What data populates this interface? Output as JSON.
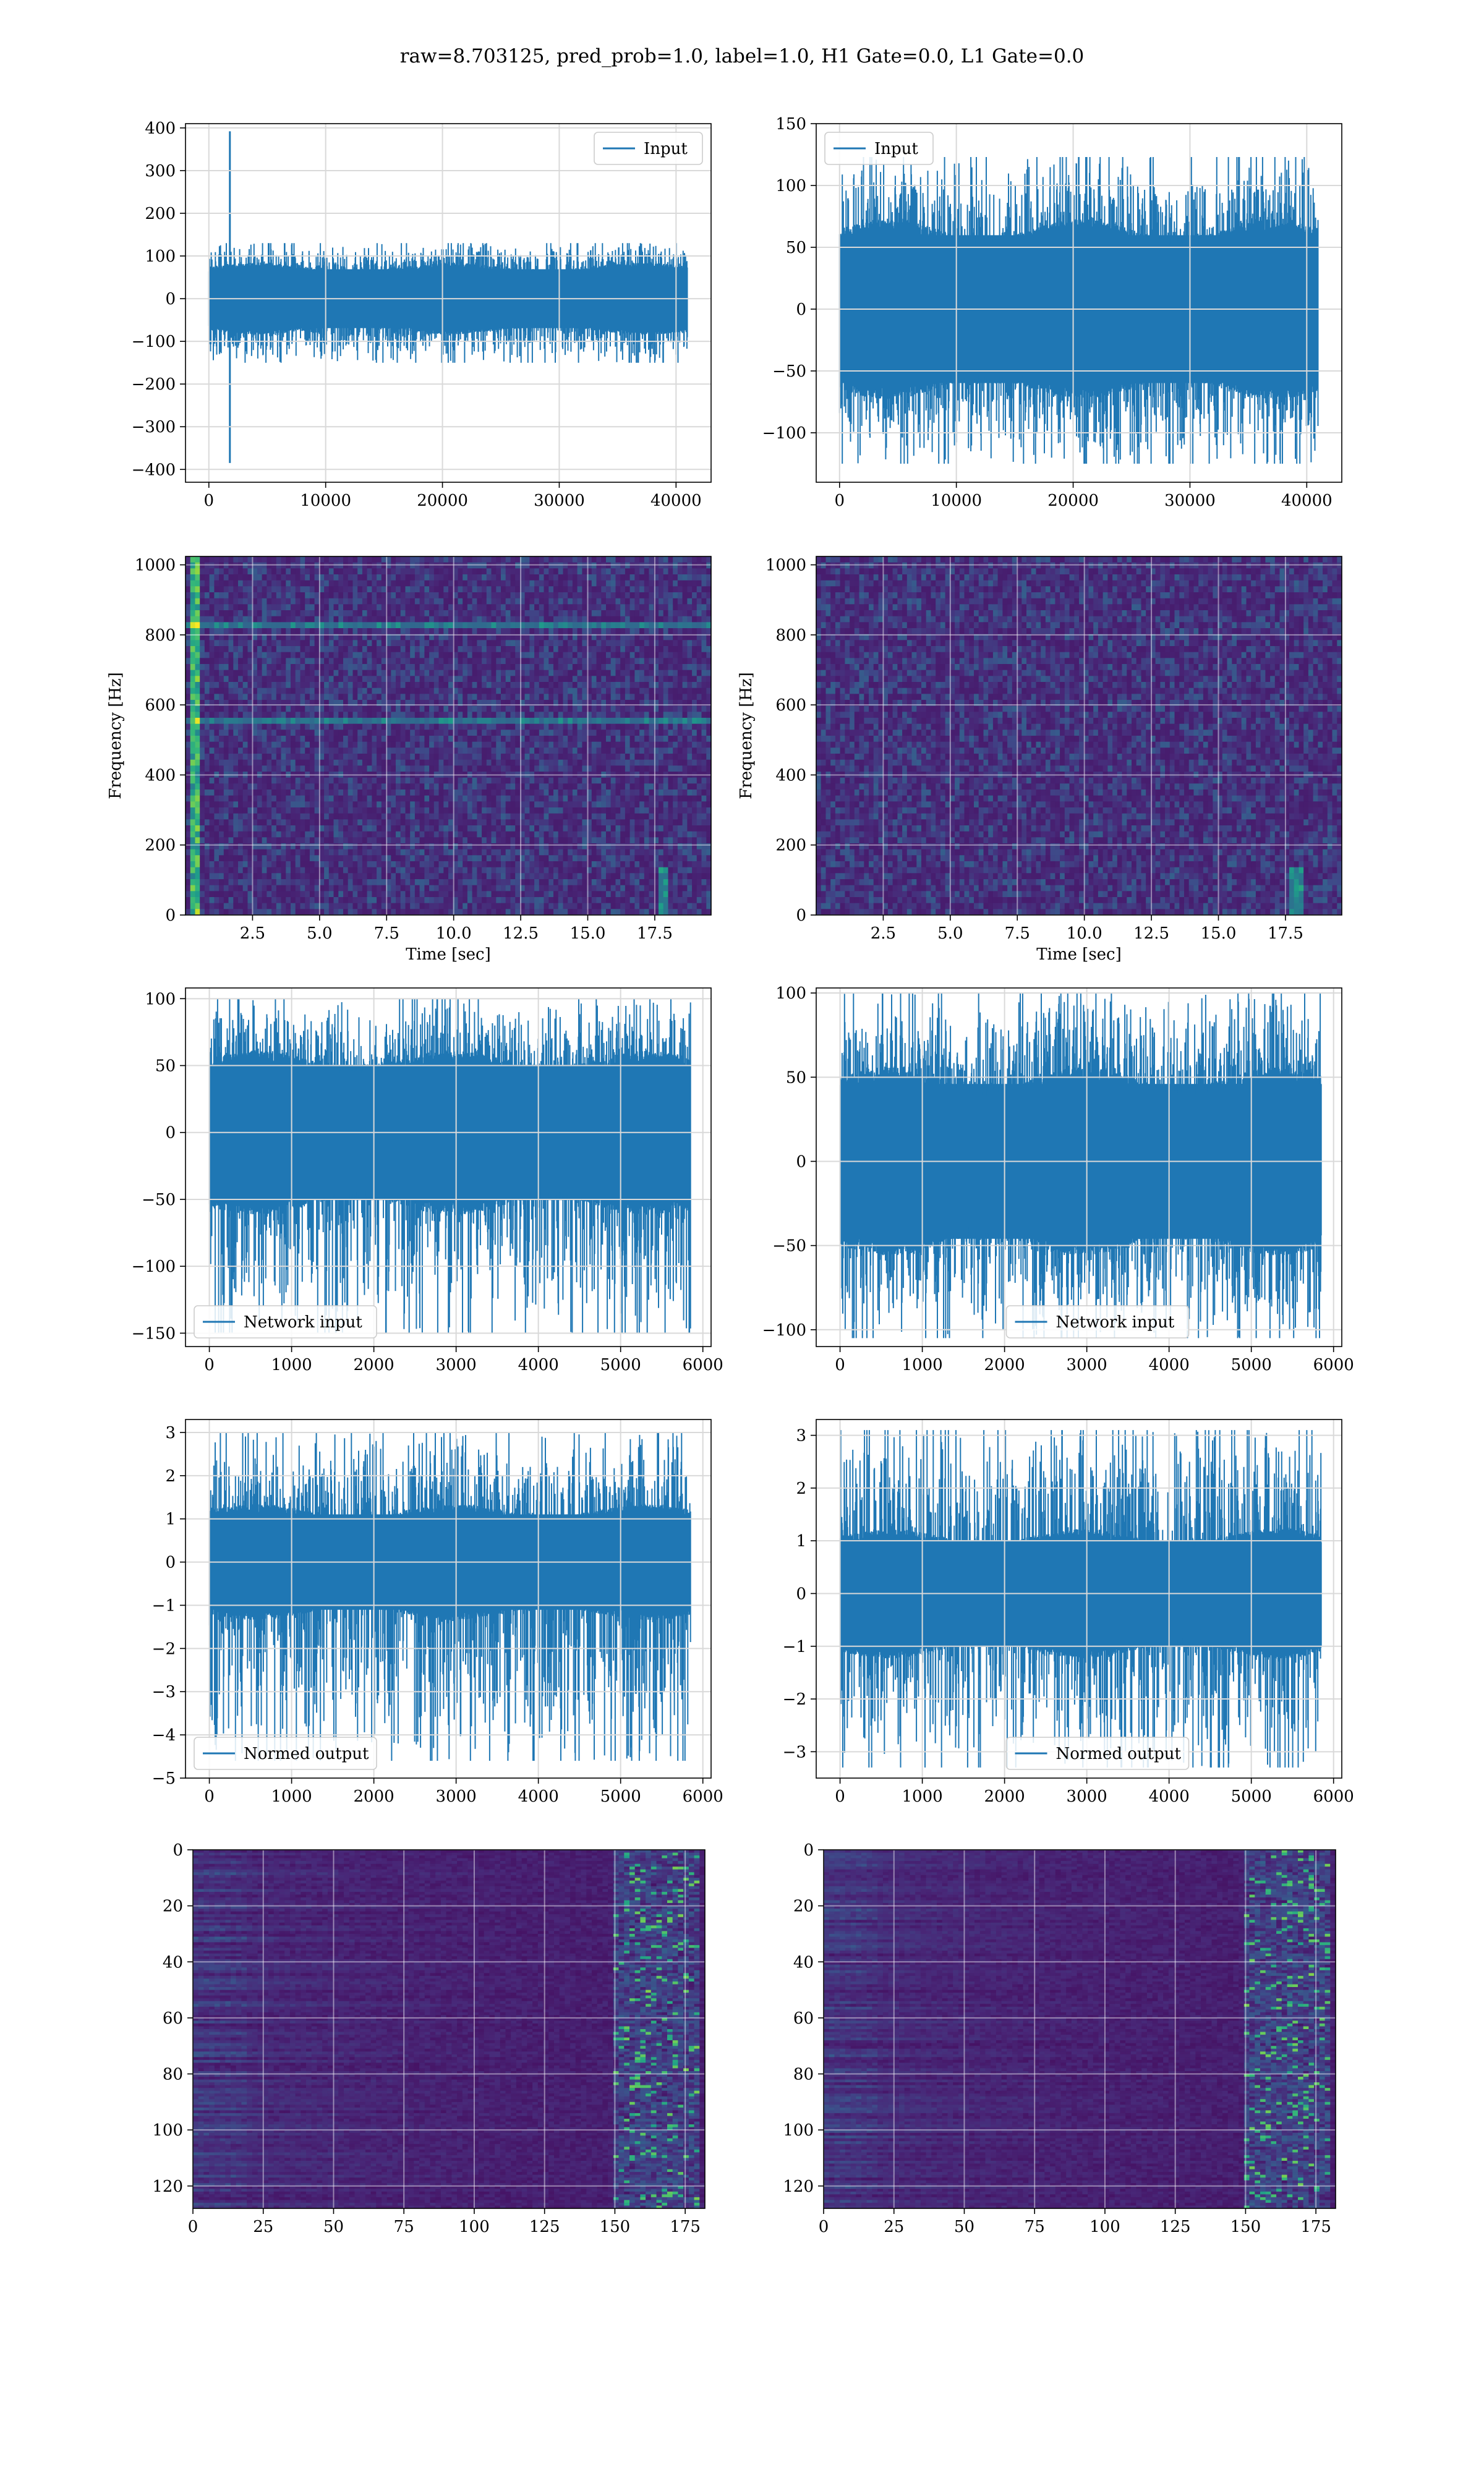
{
  "figure": {
    "title": "raw=8.703125, pred_prob=1.0, label=1.0, H1 Gate=0.0, L1 Gate=0.0",
    "line_color": "#1f77b4",
    "grid_color": "#d9d9d9",
    "colormap": "viridis"
  },
  "chart_data": [
    {
      "id": "input-h1",
      "type": "line",
      "legend": "Input",
      "legend_loc": "upper right",
      "xlim": [
        -2000,
        43000
      ],
      "ylim": [
        -430,
        410
      ],
      "xticks": [
        0,
        10000,
        20000,
        30000,
        40000
      ],
      "yticks": [
        400,
        300,
        200,
        100,
        0,
        -100,
        -200,
        -300,
        -400
      ],
      "series": [
        {
          "x_range": [
            0,
            40960
          ],
          "band": [
            -75,
            75
          ],
          "spikes_max": 130,
          "spikes_min": -150,
          "glitch": {
            "x": 1800,
            "max": 392,
            "min": -385
          }
        }
      ]
    },
    {
      "id": "input-l1",
      "type": "line",
      "legend": "Input",
      "legend_loc": "upper left",
      "xlim": [
        -2000,
        43000
      ],
      "ylim": [
        -140,
        150
      ],
      "xticks": [
        0,
        10000,
        20000,
        30000,
        40000
      ],
      "yticks": [
        150,
        100,
        50,
        0,
        -50,
        -100
      ],
      "series": [
        {
          "x_range": [
            0,
            40960
          ],
          "band": [
            -65,
            65
          ],
          "spikes_max": 123,
          "spikes_min": -125
        }
      ]
    },
    {
      "id": "spectrogram-h1",
      "type": "heatmap",
      "xlabel": "Time [sec]",
      "ylabel": "Frequency [Hz]",
      "xlim": [
        0,
        19.6
      ],
      "ylim": [
        0,
        1024
      ],
      "xticks": [
        2.5,
        5.0,
        7.5,
        10.0,
        12.5,
        15.0,
        17.5
      ],
      "yticks": [
        0,
        200,
        400,
        600,
        800,
        1000
      ],
      "features": {
        "vertical_line_sec": 0.4,
        "horizontal_lines_hz": [
          555,
          830
        ],
        "chirp_sec": 17.8
      }
    },
    {
      "id": "spectrogram-l1",
      "type": "heatmap",
      "xlabel": "Time [sec]",
      "ylabel": "Frequency [Hz]",
      "xlim": [
        0,
        19.6
      ],
      "ylim": [
        0,
        1024
      ],
      "xticks": [
        2.5,
        5.0,
        7.5,
        10.0,
        12.5,
        15.0,
        17.5
      ],
      "yticks": [
        0,
        200,
        400,
        600,
        800,
        1000
      ],
      "features": {
        "chirp_sec": 17.9
      }
    },
    {
      "id": "network-input-h1",
      "type": "line",
      "legend": "Network input",
      "legend_loc": "lower left",
      "xlim": [
        -290,
        6100
      ],
      "ylim": [
        -160,
        108
      ],
      "xticks": [
        0,
        1000,
        2000,
        3000,
        4000,
        5000,
        6000
      ],
      "yticks": [
        100,
        50,
        0,
        -50,
        -100,
        -150
      ],
      "series": [
        {
          "x_range": [
            0,
            5850
          ],
          "band": [
            -55,
            55
          ],
          "spikes_max": 100,
          "spikes_min": -150
        }
      ]
    },
    {
      "id": "network-input-l1",
      "type": "line",
      "legend": "Network input",
      "legend_loc": "lower center",
      "xlim": [
        -290,
        6100
      ],
      "ylim": [
        -110,
        103
      ],
      "xticks": [
        0,
        1000,
        2000,
        3000,
        4000,
        5000,
        6000
      ],
      "yticks": [
        100,
        50,
        0,
        -50,
        -100
      ],
      "series": [
        {
          "x_range": [
            0,
            5850
          ],
          "band": [
            -50,
            50
          ],
          "spikes_max": 100,
          "spikes_min": -105
        }
      ]
    },
    {
      "id": "normed-output-h1",
      "type": "line",
      "legend": "Normed output",
      "legend_loc": "lower left",
      "xlim": [
        -290,
        6100
      ],
      "ylim": [
        -5,
        3.3
      ],
      "xticks": [
        0,
        1000,
        2000,
        3000,
        4000,
        5000,
        6000
      ],
      "yticks": [
        3,
        2,
        1,
        0,
        -1,
        -2,
        -3,
        -4,
        -5
      ],
      "series": [
        {
          "x_range": [
            0,
            5850
          ],
          "band": [
            -1.2,
            1.2
          ],
          "spikes_max": 3.0,
          "spikes_min": -4.6
        }
      ]
    },
    {
      "id": "normed-output-l1",
      "type": "line",
      "legend": "Normed output",
      "legend_loc": "lower center",
      "xlim": [
        -290,
        6100
      ],
      "ylim": [
        -3.5,
        3.3
      ],
      "xticks": [
        0,
        1000,
        2000,
        3000,
        4000,
        5000,
        6000
      ],
      "yticks": [
        3,
        2,
        1,
        0,
        -1,
        -2,
        -3
      ],
      "series": [
        {
          "x_range": [
            0,
            5850
          ],
          "band": [
            -1.1,
            1.1
          ],
          "spikes_max": 3.1,
          "spikes_min": -3.3
        }
      ]
    },
    {
      "id": "feature-map-h1",
      "type": "heatmap",
      "xlim": [
        0,
        182
      ],
      "ylim": [
        128,
        0
      ],
      "xticks": [
        0,
        25,
        50,
        75,
        100,
        125,
        150,
        175
      ],
      "yticks": [
        0,
        20,
        40,
        60,
        80,
        100,
        120
      ],
      "features": {
        "bright_columns": [
          150,
          180
        ]
      }
    },
    {
      "id": "feature-map-l1",
      "type": "heatmap",
      "xlim": [
        0,
        182
      ],
      "ylim": [
        128,
        0
      ],
      "xticks": [
        0,
        25,
        50,
        75,
        100,
        125,
        150,
        175
      ],
      "yticks": [
        0,
        20,
        40,
        60,
        80,
        100,
        120
      ],
      "features": {
        "bright_columns": [
          150,
          180
        ]
      }
    }
  ]
}
